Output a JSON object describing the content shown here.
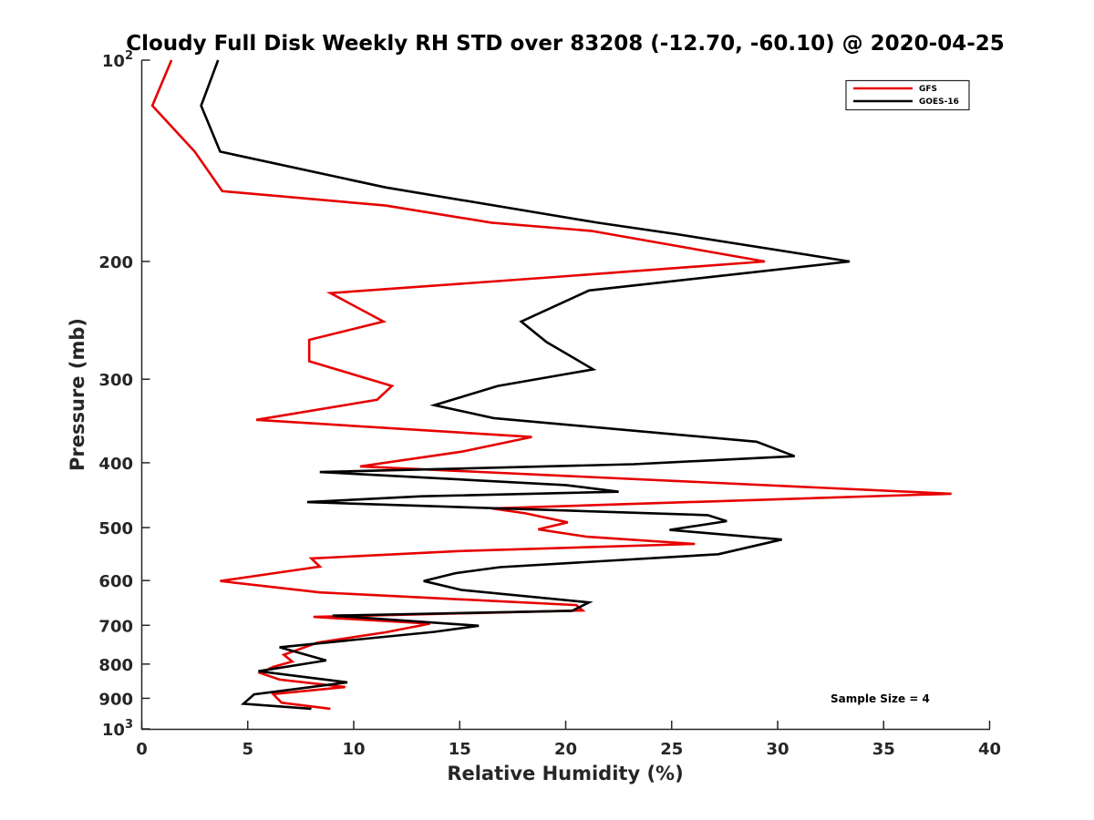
{
  "chart_data": {
    "type": "line",
    "title": "Cloudy Full Disk Weekly RH STD over 83208 (-12.70, -60.10) @ 2020-04-25",
    "xlabel": "Relative Humidity (%)",
    "ylabel": "Pressure (mb)",
    "xlim": [
      0,
      40
    ],
    "ylim": [
      100,
      1000
    ],
    "yscale": "log",
    "y_reversed": true,
    "grid": false,
    "legend_placement": "top-right",
    "x_ticks": [
      "0",
      "5",
      "10",
      "15",
      "20",
      "25",
      "30",
      "35",
      "40"
    ],
    "y_ticks": [
      {
        "value": 100,
        "base": "10",
        "exp": "2"
      },
      {
        "value": 200,
        "label": "200"
      },
      {
        "value": 300,
        "label": "300"
      },
      {
        "value": 400,
        "label": "400"
      },
      {
        "value": 500,
        "label": "500"
      },
      {
        "value": 600,
        "label": "600"
      },
      {
        "value": 700,
        "label": "700"
      },
      {
        "value": 800,
        "label": "800"
      },
      {
        "value": 900,
        "label": "900"
      },
      {
        "value": 1000,
        "base": "10",
        "exp": "3"
      }
    ],
    "annotation": "Sample Size = 4",
    "series": [
      {
        "name": "GFS",
        "color": "#e60000",
        "points": [
          {
            "p": 100,
            "x": 1.4
          },
          {
            "p": 117,
            "x": 0.5
          },
          {
            "p": 137,
            "x": 2.5
          },
          {
            "p": 157,
            "x": 3.8
          },
          {
            "p": 165,
            "x": 11.5
          },
          {
            "p": 175,
            "x": 16.5
          },
          {
            "p": 180,
            "x": 21.2
          },
          {
            "p": 200,
            "x": 29.4
          },
          {
            "p": 211,
            "x": 19.5
          },
          {
            "p": 223,
            "x": 8.9
          },
          {
            "p": 246,
            "x": 11.4
          },
          {
            "p": 262,
            "x": 7.9
          },
          {
            "p": 282,
            "x": 7.9
          },
          {
            "p": 307,
            "x": 11.8
          },
          {
            "p": 322,
            "x": 11.1
          },
          {
            "p": 345,
            "x": 5.4
          },
          {
            "p": 366,
            "x": 18.4
          },
          {
            "p": 385,
            "x": 15.1
          },
          {
            "p": 405,
            "x": 10.3
          },
          {
            "p": 445,
            "x": 38.2
          },
          {
            "p": 468,
            "x": 16.5
          },
          {
            "p": 476,
            "x": 18.1
          },
          {
            "p": 491,
            "x": 20.1
          },
          {
            "p": 503,
            "x": 18.7
          },
          {
            "p": 516,
            "x": 21.0
          },
          {
            "p": 529,
            "x": 26.1
          },
          {
            "p": 542,
            "x": 15.0
          },
          {
            "p": 556,
            "x": 8.0
          },
          {
            "p": 572,
            "x": 8.4
          },
          {
            "p": 601,
            "x": 3.7
          },
          {
            "p": 625,
            "x": 8.4
          },
          {
            "p": 653,
            "x": 20.5
          },
          {
            "p": 665,
            "x": 20.8
          },
          {
            "p": 680,
            "x": 8.1
          },
          {
            "p": 696,
            "x": 13.6
          },
          {
            "p": 717,
            "x": 11.5
          },
          {
            "p": 743,
            "x": 8.3
          },
          {
            "p": 775,
            "x": 6.7
          },
          {
            "p": 793,
            "x": 7.1
          },
          {
            "p": 808,
            "x": 6.2
          },
          {
            "p": 825,
            "x": 5.6
          },
          {
            "p": 844,
            "x": 6.5
          },
          {
            "p": 866,
            "x": 9.6
          },
          {
            "p": 887,
            "x": 6.2
          },
          {
            "p": 914,
            "x": 6.6
          },
          {
            "p": 933,
            "x": 8.9
          }
        ]
      },
      {
        "name": "GOES-16",
        "color": "#000000",
        "points": [
          {
            "p": 100,
            "x": 3.6
          },
          {
            "p": 117,
            "x": 2.8
          },
          {
            "p": 137,
            "x": 3.7
          },
          {
            "p": 155,
            "x": 11.5
          },
          {
            "p": 175,
            "x": 21.5
          },
          {
            "p": 182,
            "x": 25.2
          },
          {
            "p": 200,
            "x": 33.4
          },
          {
            "p": 221,
            "x": 21.1
          },
          {
            "p": 246,
            "x": 17.9
          },
          {
            "p": 264,
            "x": 19.1
          },
          {
            "p": 290,
            "x": 21.3
          },
          {
            "p": 307,
            "x": 16.8
          },
          {
            "p": 328,
            "x": 13.8
          },
          {
            "p": 343,
            "x": 16.6
          },
          {
            "p": 372,
            "x": 29.0
          },
          {
            "p": 391,
            "x": 30.8
          },
          {
            "p": 402,
            "x": 23.2
          },
          {
            "p": 413,
            "x": 8.4
          },
          {
            "p": 432,
            "x": 20.0
          },
          {
            "p": 442,
            "x": 22.5
          },
          {
            "p": 449,
            "x": 13.2
          },
          {
            "p": 458,
            "x": 7.8
          },
          {
            "p": 479,
            "x": 26.7
          },
          {
            "p": 489,
            "x": 27.6
          },
          {
            "p": 504,
            "x": 24.9
          },
          {
            "p": 521,
            "x": 30.2
          },
          {
            "p": 548,
            "x": 27.2
          },
          {
            "p": 573,
            "x": 16.9
          },
          {
            "p": 585,
            "x": 14.8
          },
          {
            "p": 601,
            "x": 13.3
          },
          {
            "p": 620,
            "x": 15.1
          },
          {
            "p": 647,
            "x": 21.1
          },
          {
            "p": 666,
            "x": 20.3
          },
          {
            "p": 677,
            "x": 9.0
          },
          {
            "p": 701,
            "x": 15.9
          },
          {
            "p": 716,
            "x": 13.8
          },
          {
            "p": 755,
            "x": 6.5
          },
          {
            "p": 790,
            "x": 8.7
          },
          {
            "p": 820,
            "x": 5.5
          },
          {
            "p": 852,
            "x": 9.7
          },
          {
            "p": 888,
            "x": 5.3
          },
          {
            "p": 917,
            "x": 4.8
          },
          {
            "p": 933,
            "x": 8.0
          }
        ]
      }
    ]
  }
}
